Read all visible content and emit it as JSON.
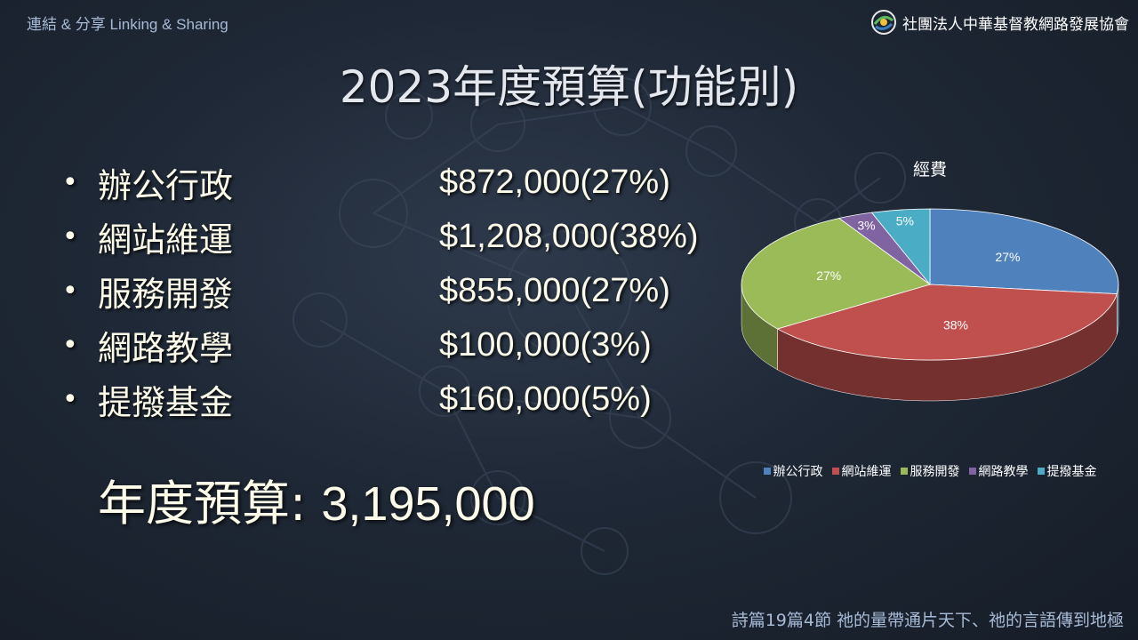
{
  "header": {
    "left_text": "連結 & 分享 Linking & Sharing",
    "org_name": "社團法人中華基督教網路發展協會",
    "logo_icon": "org-logo-icon"
  },
  "title": "2023年度預算(功能別)",
  "budget_items": [
    {
      "label": "辦公行政",
      "amount": "$872,000(27%)"
    },
    {
      "label": "網站維運",
      "amount": "$1,208,000(38%)"
    },
    {
      "label": "服務開發",
      "amount": "$855,000(27%)"
    },
    {
      "label": "網路教學",
      "amount": "$100,000(3%)"
    },
    {
      "label": "提撥基金",
      "amount": "$160,000(5%)"
    }
  ],
  "bullet": "•",
  "total": {
    "label": "年度預算:",
    "value": "3,195,000"
  },
  "footer": "詩篇19篇4節  祂的量帶通片天下、祂的言語傳到地極",
  "chart_data": {
    "type": "pie",
    "title": "經費",
    "categories": [
      "辦公行政",
      "網站維運",
      "服務開發",
      "網路教學",
      "提撥基金"
    ],
    "values": [
      27,
      38,
      27,
      3,
      5
    ],
    "data_labels": [
      "27%",
      "38%",
      "27%",
      "3%",
      "5%"
    ],
    "colors": [
      "#4f81bd",
      "#c0504d",
      "#9bbb59",
      "#8064a2",
      "#4bacc6"
    ],
    "legend_position": "bottom",
    "style": "3d"
  }
}
